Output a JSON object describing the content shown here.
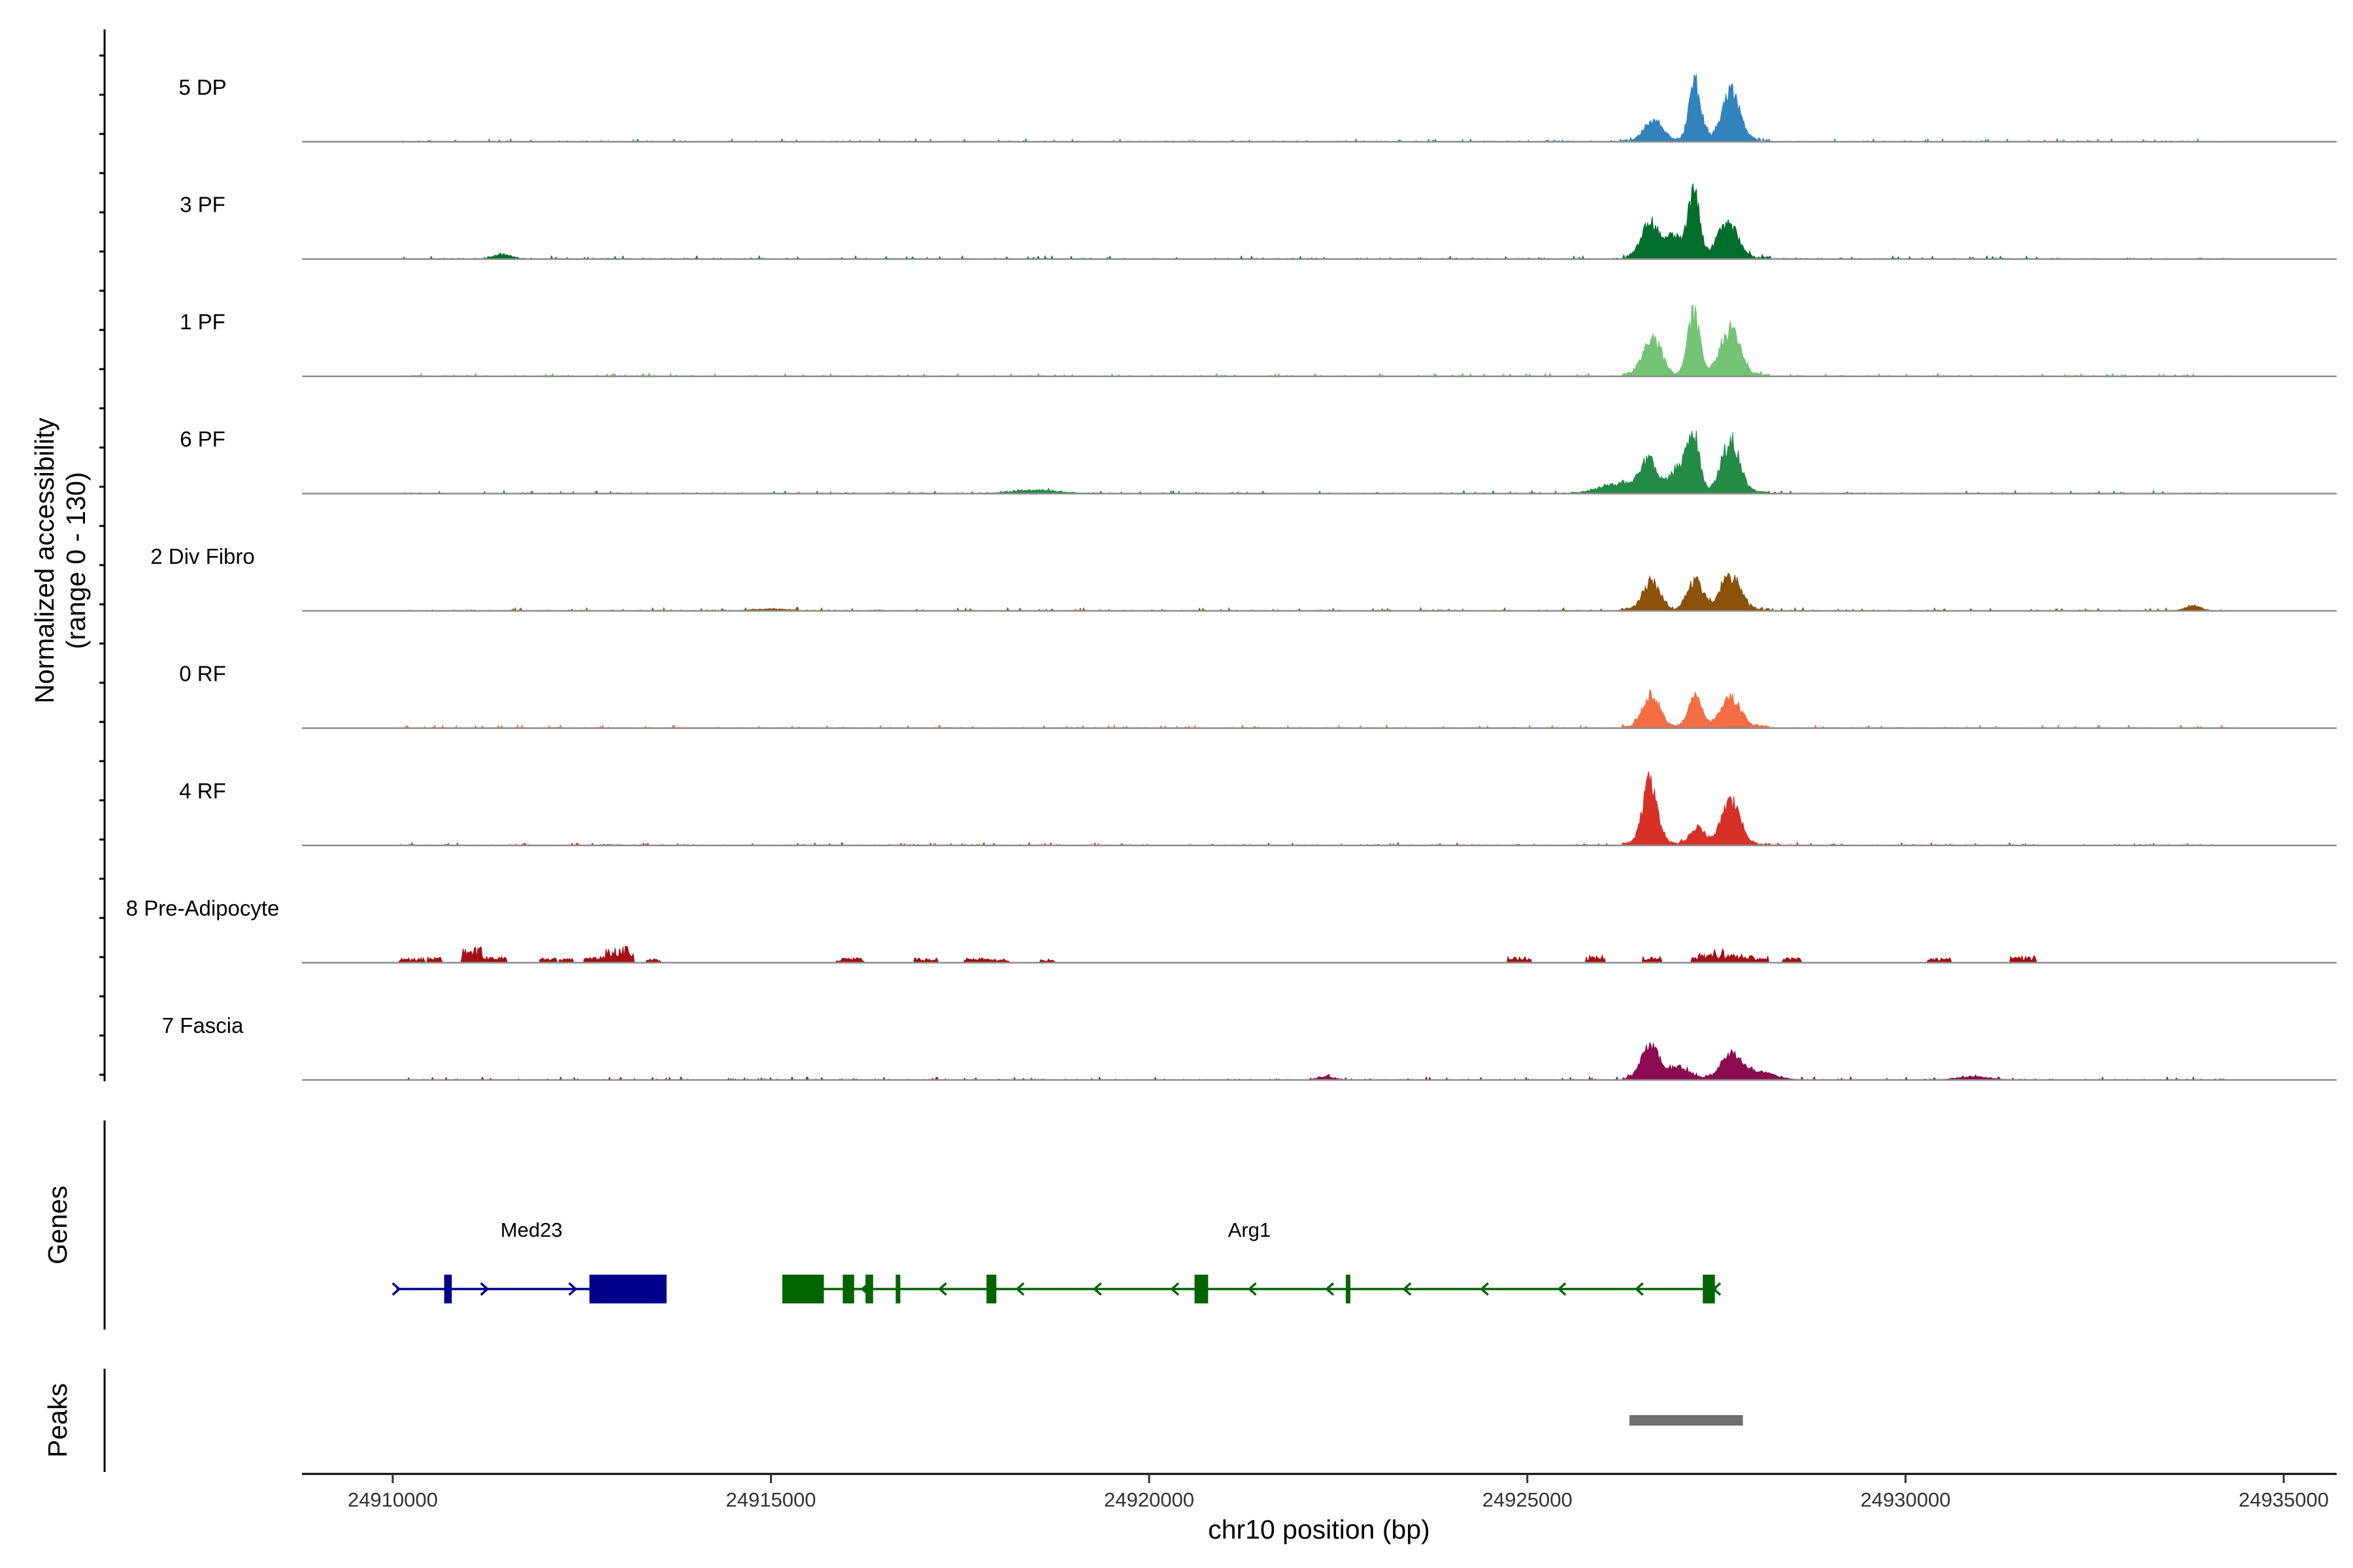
{
  "chart_data": {
    "type": "area",
    "title": "",
    "region": "chr10",
    "xlabel": "chr10 position (bp)",
    "ylabel": "Normalized accessibility\n(range 0 - 130)",
    "ylim": [
      0,
      130
    ],
    "xlim": [
      24908800,
      24935700
    ],
    "xticks": [
      24910000,
      24915000,
      24920000,
      24925000,
      24930000,
      24935000
    ],
    "xtick_labels": [
      "24910000",
      "24915000",
      "24920000",
      "24925000",
      "24930000",
      "24935000"
    ],
    "tracks": [
      {
        "name": "5 DP",
        "color": "#3182bd",
        "style": "smooth",
        "seed": 11,
        "peaks": [
          [
            24926670,
            32,
            120
          ],
          [
            24927220,
            90,
            80
          ],
          [
            24927690,
            75,
            120
          ]
        ]
      },
      {
        "name": "3 PF",
        "color": "#006d2c",
        "style": "smooth",
        "seed": 23,
        "peaks": [
          [
            24926630,
            55,
            120
          ],
          [
            24926940,
            35,
            90
          ],
          [
            24927200,
            100,
            80
          ],
          [
            24927650,
            55,
            130
          ],
          [
            24911450,
            8,
            110
          ]
        ]
      },
      {
        "name": "1 PF",
        "color": "#74c476",
        "style": "smooth",
        "seed": 37,
        "peaks": [
          [
            24926650,
            60,
            120
          ],
          [
            24927200,
            95,
            80
          ],
          [
            24927680,
            75,
            130
          ]
        ]
      },
      {
        "name": "6 PF",
        "color": "#238b45",
        "style": "smooth",
        "seed": 41,
        "peaks": [
          [
            24926600,
            48,
            110
          ],
          [
            24927000,
            40,
            120
          ],
          [
            24927200,
            85,
            80
          ],
          [
            24927690,
            80,
            120
          ],
          [
            24926200,
            15,
            250
          ],
          [
            24918500,
            5,
            300
          ]
        ]
      },
      {
        "name": "2 Div Fibro",
        "color": "#8c510a",
        "style": "smooth",
        "seed": 53,
        "peaks": [
          [
            24926640,
            45,
            110
          ],
          [
            24927220,
            45,
            100
          ],
          [
            24927690,
            52,
            130
          ],
          [
            24933800,
            8,
            100
          ],
          [
            24915000,
            3,
            200
          ]
        ]
      },
      {
        "name": "0 RF",
        "color": "#f46d43",
        "style": "smooth",
        "seed": 67,
        "peaks": [
          [
            24926640,
            50,
            110
          ],
          [
            24927220,
            48,
            90
          ],
          [
            24927690,
            45,
            130
          ]
        ]
      },
      {
        "name": "4 RF",
        "color": "#d73027",
        "style": "smooth",
        "seed": 79,
        "peaks": [
          [
            24926620,
            95,
            100
          ],
          [
            24927250,
            28,
            90
          ],
          [
            24927690,
            68,
            120
          ]
        ]
      },
      {
        "name": "8 Pre-Adipocyte",
        "color": "#a50f15",
        "style": "blocky",
        "seed": 89,
        "blocks": [
          [
            24910250,
            8
          ],
          [
            24910550,
            10
          ],
          [
            24911050,
            25
          ],
          [
            24911350,
            10
          ],
          [
            24912050,
            8
          ],
          [
            24912300,
            7
          ],
          [
            24912700,
            10
          ],
          [
            24913000,
            28
          ],
          [
            24913450,
            6
          ],
          [
            24916050,
            8
          ],
          [
            24917050,
            8
          ],
          [
            24917700,
            8
          ],
          [
            24918000,
            6
          ],
          [
            24918650,
            6
          ],
          [
            24924900,
            10
          ],
          [
            24925900,
            12
          ],
          [
            24926650,
            10
          ],
          [
            24927300,
            15
          ],
          [
            24927500,
            22
          ],
          [
            24927700,
            14
          ],
          [
            24928000,
            12
          ],
          [
            24928500,
            8
          ],
          [
            24930450,
            8
          ],
          [
            24931550,
            12
          ]
        ]
      },
      {
        "name": "7 Fascia",
        "color": "#8b0a50",
        "style": "smooth",
        "seed": 97,
        "peaks": [
          [
            24926620,
            52,
            110
          ],
          [
            24927000,
            18,
            150
          ],
          [
            24927700,
            38,
            140
          ],
          [
            24928100,
            10,
            200
          ],
          [
            24922350,
            5,
            110
          ],
          [
            24930900,
            5,
            200
          ]
        ]
      }
    ],
    "genes_panel_label": "Genes",
    "genes": [
      {
        "name": "Med23",
        "strand": "+",
        "color": "#00008b",
        "start": 24910050,
        "end": 24913620,
        "exons": [
          [
            24910680,
            24910780
          ],
          [
            24912600,
            24913620
          ]
        ]
      },
      {
        "name": "Arg1",
        "strand": "-",
        "color": "#006400",
        "start": 24915150,
        "end": 24927500,
        "exons": [
          [
            24915150,
            24915700
          ],
          [
            24915950,
            24916100
          ],
          [
            24916250,
            24916350
          ],
          [
            24916650,
            24916700
          ],
          [
            24917850,
            24917980
          ],
          [
            24920600,
            24920780
          ],
          [
            24922600,
            24922640
          ],
          [
            24927320,
            24927480
          ]
        ]
      }
    ],
    "peaks_panel_label": "Peaks",
    "called_peaks": [
      [
        24926350,
        24927850
      ]
    ]
  }
}
